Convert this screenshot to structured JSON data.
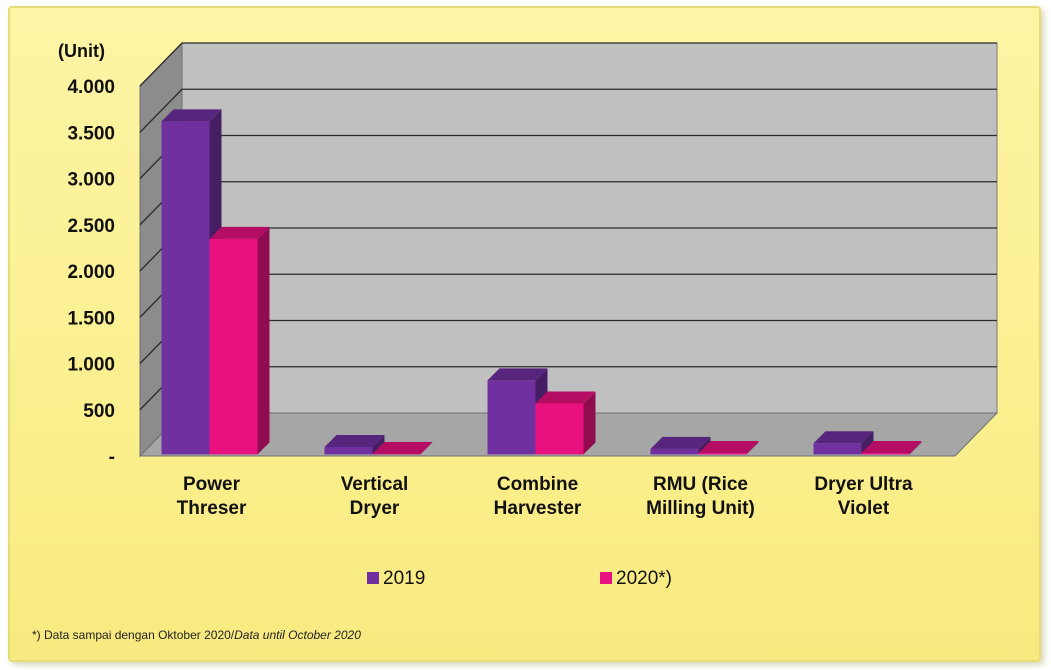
{
  "chart_data": {
    "type": "bar",
    "categories": [
      [
        "Power",
        "Threser"
      ],
      [
        "Vertical",
        "Dryer"
      ],
      [
        "Combine",
        "Harvester"
      ],
      [
        "RMU (Rice",
        "Milling Unit)"
      ],
      [
        "Dryer Ultra",
        "Violet"
      ]
    ],
    "series": [
      {
        "name": "2019",
        "values": [
          3600,
          80,
          800,
          60,
          120
        ],
        "color": "#7030a0"
      },
      {
        "name": "2020*)",
        "values": [
          2330,
          5,
          550,
          15,
          15
        ],
        "color": "#e8117f"
      }
    ],
    "ylabel": "(Unit)",
    "ylim": [
      0,
      4000
    ],
    "yticks": [
      {
        "value": 0,
        "label": "-"
      },
      {
        "value": 500,
        "label": "500"
      },
      {
        "value": 1000,
        "label": "1.000"
      },
      {
        "value": 1500,
        "label": "1.500"
      },
      {
        "value": 2000,
        "label": "2.000"
      },
      {
        "value": 2500,
        "label": "2.500"
      },
      {
        "value": 3000,
        "label": "3.000"
      },
      {
        "value": 3500,
        "label": "3.500"
      },
      {
        "value": 4000,
        "label": "4.000"
      }
    ],
    "grid": true,
    "legend_position": "bottom",
    "style": "3d-clustered-column",
    "colors": {
      "plot_back_wall": "#c0c0c0",
      "plot_side_wall": "#8c8c8c",
      "plot_floor": "#a6a6a6",
      "gridline": "#2b2b2b",
      "frame_background": "#fbf08f"
    }
  },
  "footnote": {
    "prefix": "*) Data sampai dengan Oktober 2020/",
    "italic": "Data until October 2020"
  }
}
